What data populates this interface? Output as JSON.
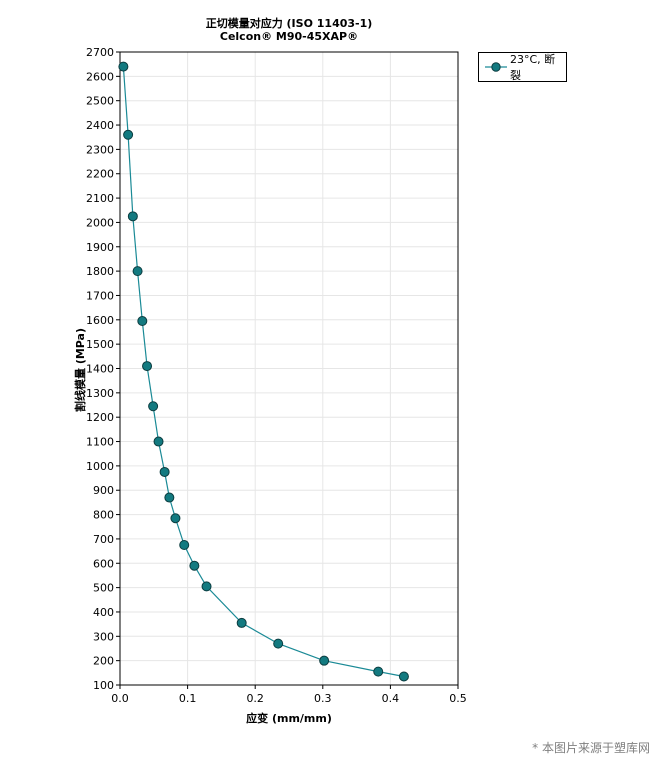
{
  "chart_data": {
    "type": "line",
    "title": "正切模量对应力 (ISO 11403-1)",
    "subtitle": "Celcon® M90-45XAP®",
    "xlabel": "应变 (mm/mm)",
    "ylabel": "割线模量 (MPa)",
    "xlim": [
      0,
      0.5
    ],
    "ylim": [
      100,
      2700
    ],
    "xticks": [
      0,
      0.1,
      0.2,
      0.3,
      0.4,
      0.5
    ],
    "xtick_labels": [
      "0.0",
      "0.1",
      "0.2",
      "0.3",
      "0.4",
      "0.5"
    ],
    "yticks": [
      100,
      200,
      300,
      400,
      500,
      600,
      700,
      800,
      900,
      1000,
      1100,
      1200,
      1300,
      1400,
      1500,
      1600,
      1700,
      1800,
      1900,
      2000,
      2100,
      2200,
      2300,
      2400,
      2500,
      2600,
      2700
    ],
    "grid": true,
    "legend_position": "outside-top-right",
    "series": [
      {
        "name": "23°C, 断裂",
        "color": "#1a8a96",
        "marker_color": "#137a80",
        "x": [
          0.005,
          0.012,
          0.019,
          0.026,
          0.033,
          0.04,
          0.049,
          0.057,
          0.066,
          0.073,
          0.082,
          0.095,
          0.11,
          0.128,
          0.18,
          0.234,
          0.302,
          0.382,
          0.42
        ],
        "y": [
          2640,
          2360,
          2025,
          1800,
          1595,
          1410,
          1245,
          1100,
          975,
          870,
          785,
          675,
          590,
          505,
          355,
          270,
          200,
          155,
          135
        ]
      }
    ]
  },
  "watermark": "* 本图片来源于塑库网"
}
